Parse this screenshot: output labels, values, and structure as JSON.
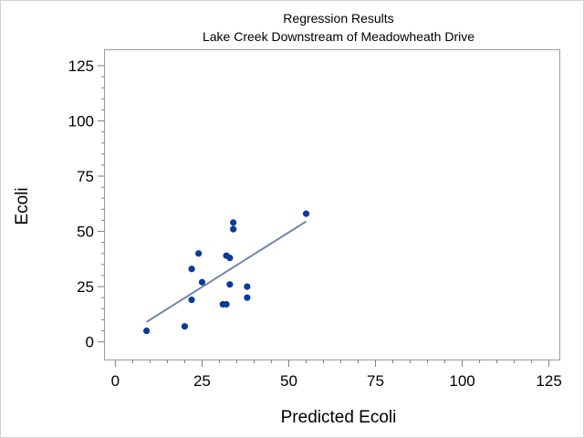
{
  "chart_data": {
    "type": "scatter",
    "title": "Regression Results",
    "subtitle": "Lake Creek Downstream of Meadowheath Drive",
    "xlabel": "Predicted Ecoli",
    "ylabel": "Ecoli",
    "xlim": [
      -3,
      128
    ],
    "ylim": [
      -8,
      132
    ],
    "x_ticks": [
      0,
      25,
      50,
      75,
      100,
      125
    ],
    "y_ticks": [
      0,
      25,
      50,
      75,
      100,
      125
    ],
    "tick_labels_x": [
      "0",
      "25",
      "50",
      "75",
      "100",
      "125"
    ],
    "tick_labels_y": [
      "0",
      "25",
      "50",
      "75",
      "100",
      "125"
    ],
    "grid": false,
    "colors": {
      "points": "#0b3a9c",
      "fit_line": "#6c85a8"
    },
    "series": [
      {
        "kind": "points",
        "x": [
          9,
          20,
          22,
          22,
          24,
          25,
          31,
          32,
          32,
          33,
          33,
          34,
          34,
          38,
          38,
          55
        ],
        "y": [
          5,
          7,
          19,
          33,
          40,
          27,
          17,
          17,
          39,
          26,
          38,
          51,
          54,
          20,
          25,
          58
        ]
      },
      {
        "kind": "fit_line",
        "x": [
          9,
          55
        ],
        "y": [
          9,
          54.5
        ]
      }
    ]
  }
}
